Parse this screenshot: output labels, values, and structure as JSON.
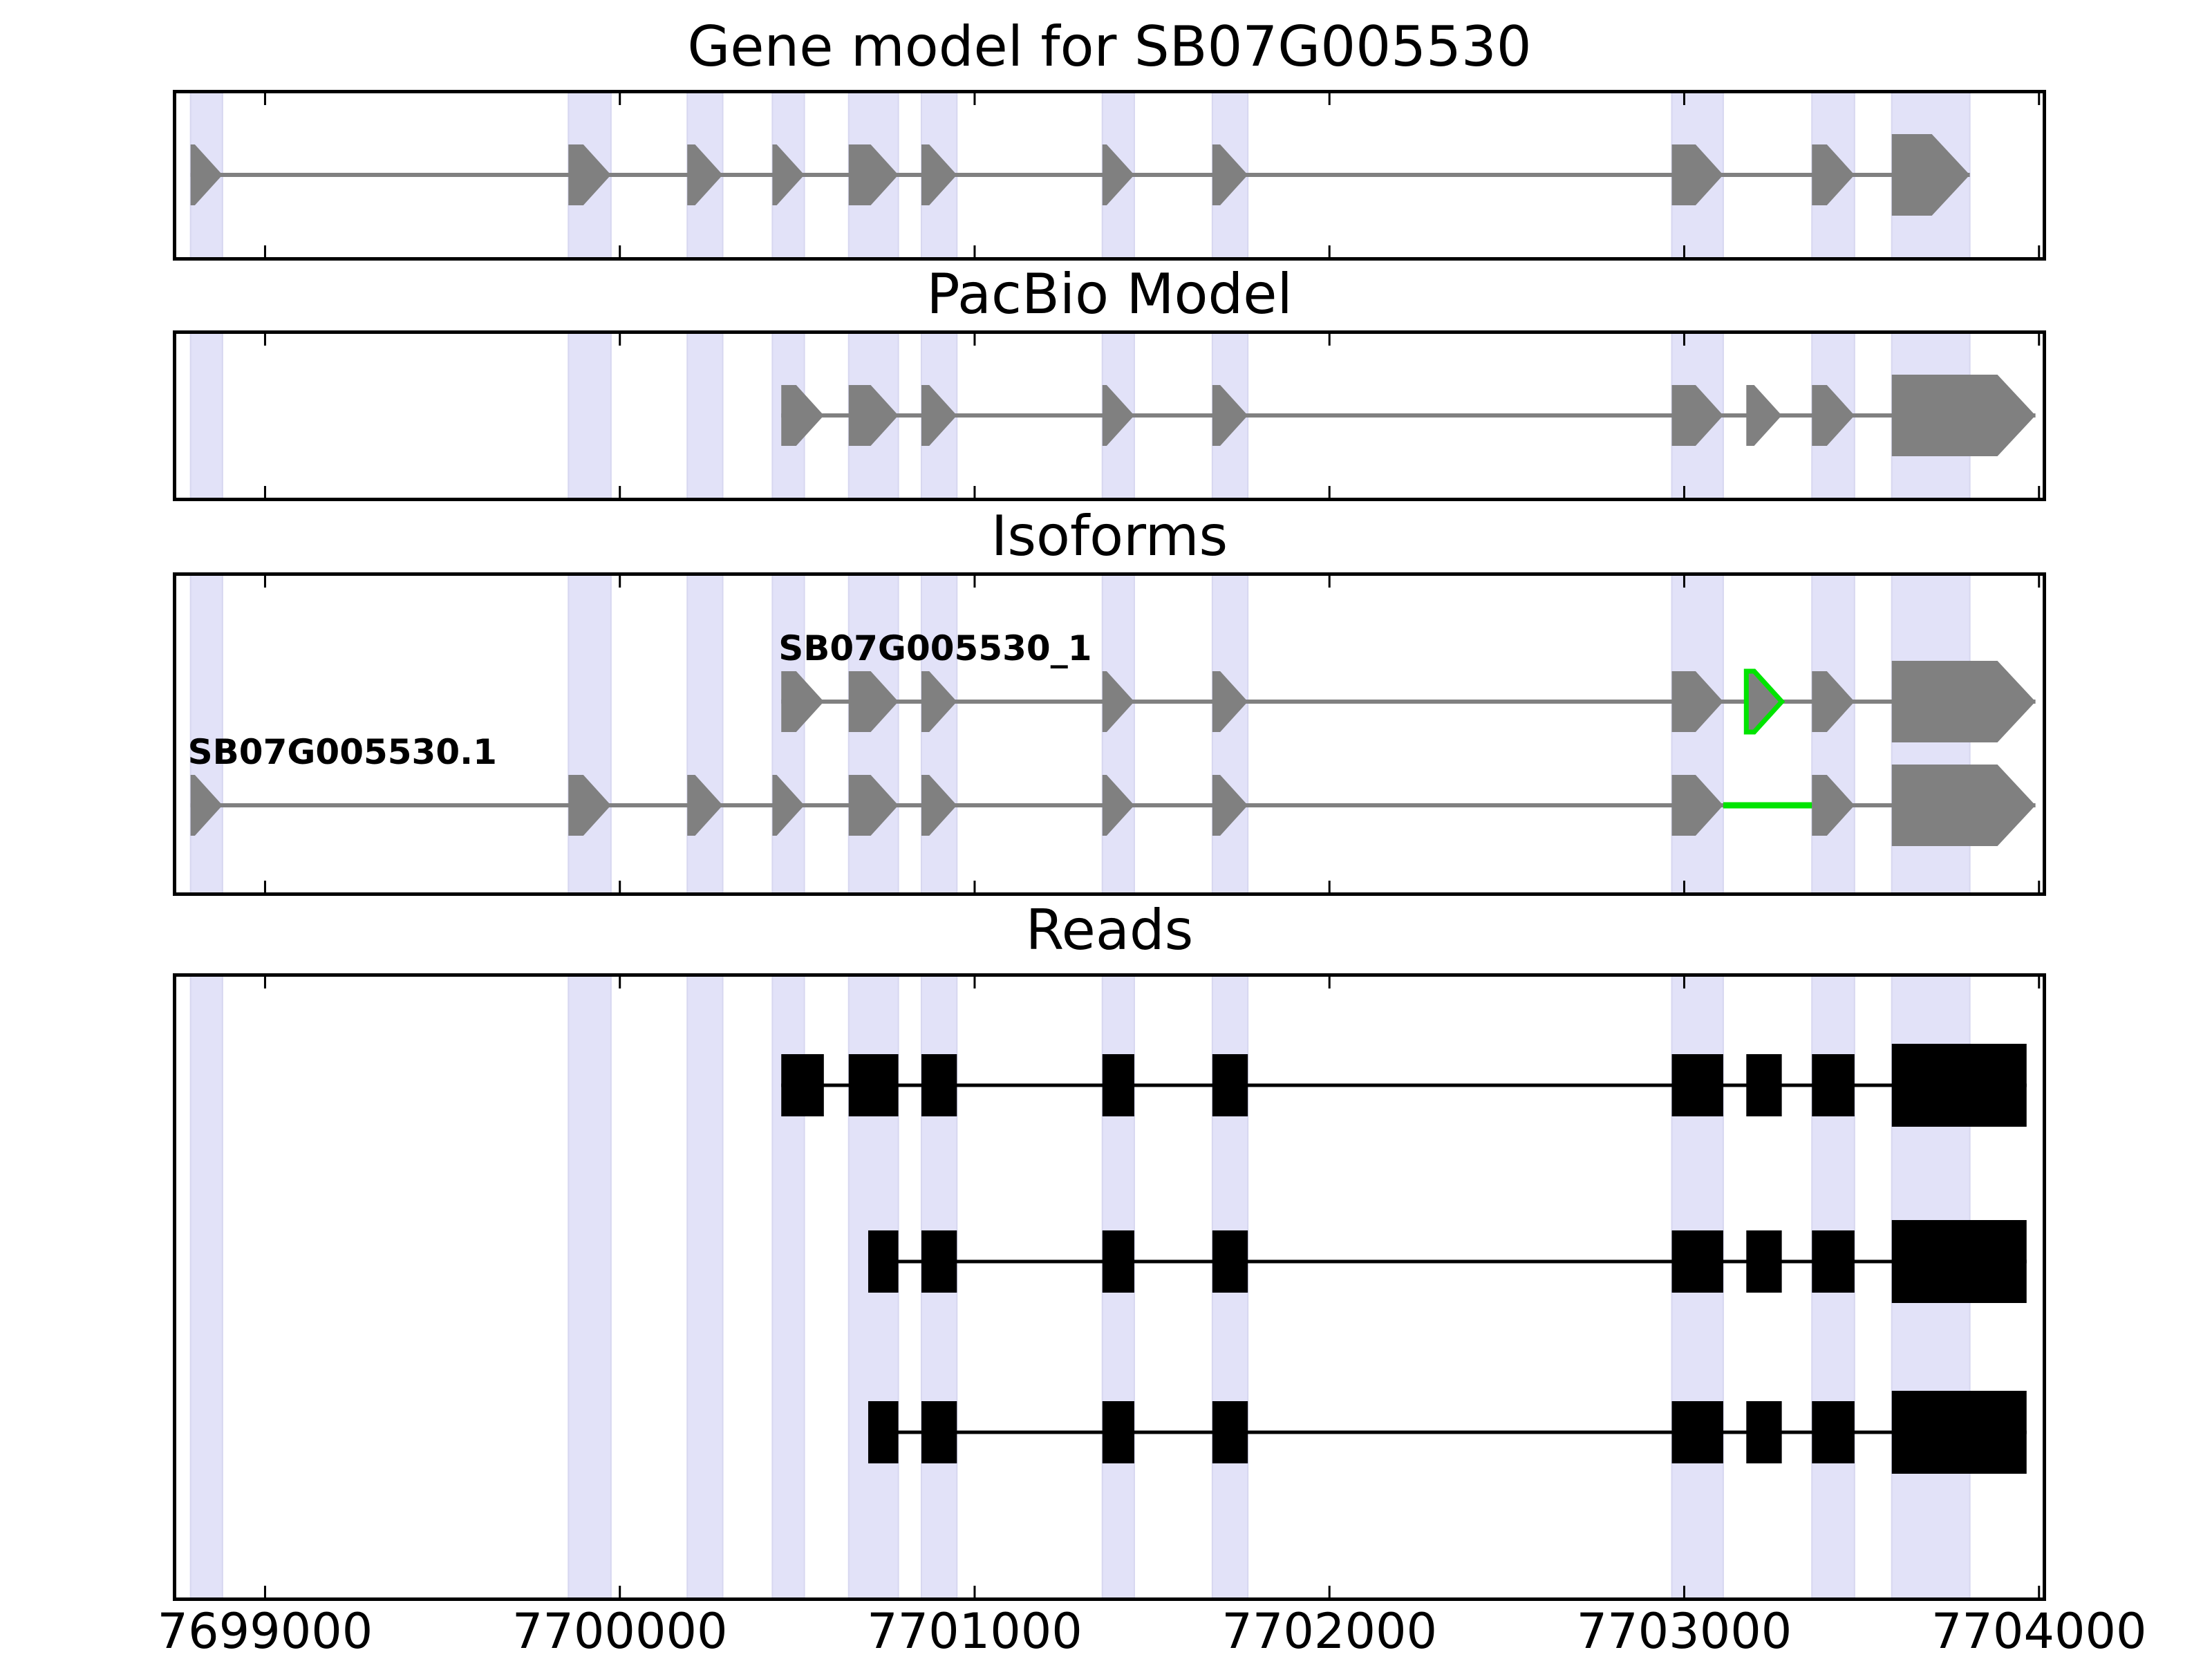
{
  "figure_title": "Gene model for SB07G005530",
  "gene_id": "SB07G005530",
  "chart_data": {
    "type": "gene-model-tracks",
    "title": "Gene model for SB07G005530",
    "xlim": [
      7698740,
      7704020
    ],
    "x_ticks": [
      7699000,
      7700000,
      7701000,
      7702000,
      7703000,
      7704000
    ],
    "x_tick_labels": [
      "7699000",
      "7700000",
      "7701000",
      "7702000",
      "7703000",
      "7704000"
    ],
    "grid": false,
    "legend": false,
    "highlight_regions": [
      [
        7698790,
        7698880
      ],
      [
        7699855,
        7699975
      ],
      [
        7700190,
        7700290
      ],
      [
        7700430,
        7700520
      ],
      [
        7700645,
        7700785
      ],
      [
        7700850,
        7700950
      ],
      [
        7701360,
        7701450
      ],
      [
        7701670,
        7701770
      ],
      [
        7702965,
        7703110
      ],
      [
        7703360,
        7703480
      ],
      [
        7703585,
        7703805
      ]
    ],
    "tracks": [
      {
        "title": "Gene model for SB07G005530",
        "features": [
          {
            "type": "transcript",
            "name": "",
            "strand": "+",
            "exons": [
              [
                7698790,
                7698880
              ],
              [
                7699855,
                7699975
              ],
              [
                7700190,
                7700290
              ],
              [
                7700430,
                7700520
              ],
              [
                7700645,
                7700785
              ],
              [
                7700850,
                7700950
              ],
              [
                7701360,
                7701450
              ],
              [
                7701670,
                7701770
              ],
              [
                7702965,
                7703110
              ],
              [
                7703360,
                7703480
              ],
              [
                7703585,
                7703805
              ]
            ]
          }
        ]
      },
      {
        "title": "PacBio Model",
        "features": [
          {
            "type": "transcript",
            "name": "",
            "strand": "+",
            "exons": [
              [
                7700455,
                7700575
              ],
              [
                7700645,
                7700785
              ],
              [
                7700850,
                7700950
              ],
              [
                7701360,
                7701450
              ],
              [
                7701670,
                7701770
              ],
              [
                7702965,
                7703110
              ],
              [
                7703175,
                7703275
              ],
              [
                7703360,
                7703480
              ],
              [
                7703585,
                7703990
              ]
            ]
          }
        ]
      },
      {
        "title": "Isoforms",
        "features": [
          {
            "type": "transcript",
            "name": "SB07G005530_1",
            "strand": "+",
            "exons": [
              [
                7700455,
                7700575
              ],
              [
                7700645,
                7700785
              ],
              [
                7700850,
                7700950
              ],
              [
                7701360,
                7701450
              ],
              [
                7701670,
                7701770
              ],
              [
                7702965,
                7703110
              ],
              [
                7703175,
                7703275
              ],
              [
                7703360,
                7703480
              ],
              [
                7703585,
                7703990
              ]
            ],
            "novel_exon_index": 6
          },
          {
            "type": "transcript",
            "name": "SB07G005530.1",
            "strand": "+",
            "exons": [
              [
                7698790,
                7698880
              ],
              [
                7699855,
                7699975
              ],
              [
                7700190,
                7700290
              ],
              [
                7700430,
                7700520
              ],
              [
                7700645,
                7700785
              ],
              [
                7700850,
                7700950
              ],
              [
                7701360,
                7701450
              ],
              [
                7701670,
                7701770
              ],
              [
                7702965,
                7703110
              ],
              [
                7703360,
                7703480
              ],
              [
                7703585,
                7703990
              ]
            ],
            "novel_intron": [
              7703110,
              7703360
            ]
          }
        ]
      },
      {
        "title": "Reads",
        "features": [
          {
            "type": "read",
            "blocks": [
              [
                7700455,
                7700575
              ],
              [
                7700645,
                7700785
              ],
              [
                7700850,
                7700950
              ],
              [
                7701360,
                7701450
              ],
              [
                7701670,
                7701770
              ],
              [
                7702965,
                7703110
              ],
              [
                7703175,
                7703275
              ],
              [
                7703360,
                7703480
              ],
              [
                7703585,
                7703965
              ]
            ]
          },
          {
            "type": "read",
            "blocks": [
              [
                7700700,
                7700785
              ],
              [
                7700850,
                7700950
              ],
              [
                7701360,
                7701450
              ],
              [
                7701670,
                7701770
              ],
              [
                7702965,
                7703110
              ],
              [
                7703175,
                7703275
              ],
              [
                7703360,
                7703480
              ],
              [
                7703585,
                7703965
              ]
            ]
          },
          {
            "type": "read",
            "blocks": [
              [
                7700700,
                7700785
              ],
              [
                7700850,
                7700950
              ],
              [
                7701360,
                7701450
              ],
              [
                7701670,
                7701770
              ],
              [
                7702965,
                7703110
              ],
              [
                7703175,
                7703275
              ],
              [
                7703360,
                7703480
              ],
              [
                7703585,
                7703965
              ]
            ]
          }
        ]
      }
    ],
    "colors": {
      "feature_gray": "#808080",
      "read_black": "#000000",
      "novel_green": "#00e400",
      "highlight_fill": "#e2e2f8",
      "highlight_edge": "#d7d7f0",
      "axis_black": "#000000",
      "background": "#ffffff"
    }
  }
}
